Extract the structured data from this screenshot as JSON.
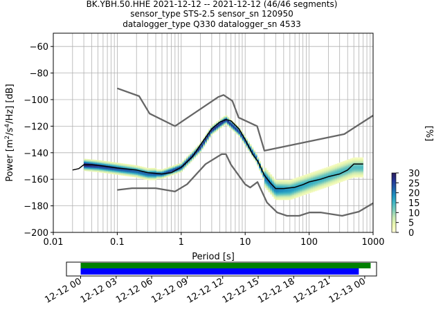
{
  "title": {
    "line1": "BK.YBH.50.HHE   2021-12-12 -- 2021-12-12  (46/46 segments)",
    "line2": "sensor_type STS-2.5 sensor_sn 120950",
    "line3": "datalogger_type Q330 datalogger_sn 4533"
  },
  "colors": {
    "model_curve": "#666666",
    "mode_curve": "#000000",
    "grid": "#b0b0b0",
    "data_bar": "#008000",
    "gap_bar": "#0000ff",
    "colormap": [
      "#ffffd9",
      "#edf8b1",
      "#c7e9b4",
      "#7fcdbb",
      "#41b6c4",
      "#1d91c0",
      "#225ea8",
      "#253494",
      "#2c1e5a"
    ]
  },
  "chart_data": [
    {
      "type": "heatmap",
      "title": "BK.YBH.50.HHE   2021-12-12 -- 2021-12-12  (46/46 segments)",
      "xlabel": "Period [s]",
      "ylabel": "Power [m²/s⁴/Hz] [dB]",
      "xscale": "log",
      "xlim": [
        0.01,
        1000
      ],
      "ylim": [
        -200,
        -50
      ],
      "grid": true,
      "x_tick_labels": [
        "0.01",
        "0.1",
        "1",
        "10",
        "100",
        "1000"
      ],
      "y_tick_values": [
        -200,
        -180,
        -160,
        -140,
        -120,
        -100,
        -80,
        -60
      ],
      "y_tick_labels": [
        "−200",
        "−180",
        "−160",
        "−140",
        "−120",
        "−100",
        "−80",
        "−60"
      ],
      "series": [
        {
          "name": "",
          "role": "high-noise-model",
          "x": [
            0.1,
            0.22,
            0.32,
            0.8,
            3.8,
            4.6,
            6.3,
            7.9,
            15.4,
            20,
            354.8,
            1000
          ],
          "y": [
            -91.5,
            -97.4,
            -110.5,
            -120,
            -98,
            -96.5,
            -101,
            -113.5,
            -120,
            -138.5,
            -126,
            -112
          ]
        },
        {
          "name": "",
          "role": "low-noise-model",
          "x": [
            0.1,
            0.17,
            0.4,
            0.8,
            1.24,
            2.4,
            4.3,
            5.0,
            6.0,
            10.0,
            12.0,
            15.6,
            21.9,
            31.6,
            45.0,
            70.0,
            101.0,
            154.0,
            328.0,
            600.0,
            1000.0
          ],
          "y": [
            -168,
            -166.7,
            -166.7,
            -169.2,
            -163.7,
            -148.6,
            -141.1,
            -141.1,
            -149,
            -163.8,
            -166.2,
            -162.1,
            -177.5,
            -185,
            -187.5,
            -187.5,
            -185,
            -185,
            -187.5,
            -184.4,
            -178
          ]
        },
        {
          "name": "",
          "role": "mode",
          "x": [
            0.02,
            0.025,
            0.03,
            0.04,
            0.06,
            0.1,
            0.2,
            0.3,
            0.5,
            0.7,
            1.0,
            1.5,
            2.0,
            3.0,
            4.0,
            5.0,
            6.0,
            8.0,
            10.0,
            13.0,
            16.0,
            20.0,
            25.0,
            30.0,
            40.0,
            60.0,
            80.0,
            100.0,
            150.0,
            200.0,
            300.0,
            400.0,
            500.0,
            700.0
          ],
          "y": [
            -153,
            -152,
            -149,
            -149,
            -150,
            -151.5,
            -153,
            -155,
            -156,
            -155,
            -151,
            -143,
            -134,
            -122,
            -117,
            -115,
            -116,
            -122,
            -130,
            -141,
            -147,
            -157,
            -163,
            -167,
            -167,
            -166,
            -164,
            -162,
            -160,
            -158,
            -156,
            -153,
            -148.5,
            -148.5
          ]
        },
        {
          "name": "",
          "role": "psd-density-percent",
          "x": [
            0.03,
            0.05,
            0.1,
            0.2,
            0.3,
            0.5,
            1.0,
            2.0,
            3.0,
            5.0,
            8.0,
            10.0,
            15.0,
            20.0,
            30.0,
            50.0,
            100.0,
            200.0,
            500.0
          ],
          "y": [
            -149,
            -150,
            -152,
            -154,
            -156,
            -156,
            -151,
            -136,
            -123,
            -115,
            -124,
            -131,
            -144,
            -158,
            -168,
            -168,
            -163,
            -158,
            -151
          ],
          "values": [
            30,
            26,
            24,
            22,
            22,
            24,
            26,
            28,
            28,
            27,
            26,
            25,
            24,
            22,
            20,
            18,
            16,
            15,
            14
          ]
        }
      ],
      "colorbar": {
        "label": "[%]",
        "ticks": [
          0,
          5,
          10,
          15,
          20,
          25,
          30
        ],
        "range": [
          0,
          30
        ]
      }
    },
    {
      "type": "bar",
      "title": "",
      "xlabel": "",
      "ylabel": "",
      "x_tick_labels": [
        "12-12 00",
        "12-12 03",
        "12-12 06",
        "12-12 09",
        "12-12 12",
        "12-12 15",
        "12-12 18",
        "12-12 21",
        "12-13 00"
      ],
      "x_range_hours": [
        -1.2,
        25
      ],
      "series": [
        {
          "name": "",
          "role": "data-coverage",
          "start_hour": 0,
          "end_hour": 24.5
        },
        {
          "name": "",
          "role": "gap-coverage",
          "start_hour": 0,
          "end_hour": 23.5
        }
      ]
    }
  ]
}
